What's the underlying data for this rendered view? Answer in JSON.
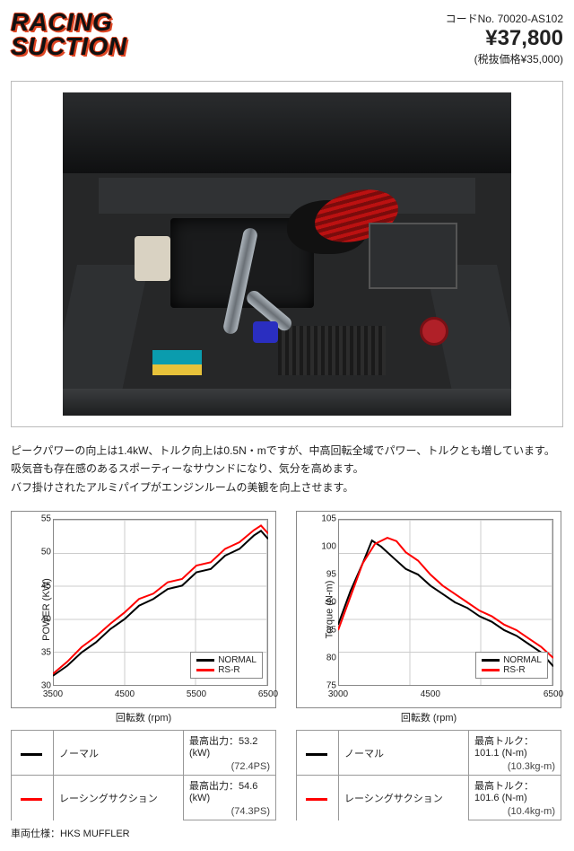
{
  "header": {
    "logo_line1": "RACING",
    "logo_line2": "SUCTION",
    "code_label": "コードNo. 70020-AS102",
    "price": "¥37,800",
    "price_sub": "(税抜価格¥35,000)"
  },
  "description": {
    "l1": "ピークパワーの向上は1.4kW、トルク向上は0.5N・mですが、中高回転全域でパワー、トルクとも増しています。",
    "l2": "吸気音も存在感のあるスポーティーなサウンドになり、気分を高めます。",
    "l3": "バフ掛けされたアルミパイプがエンジンルームの美観を向上させます。"
  },
  "charts": {
    "colors": {
      "normal": "#000000",
      "rsr": "#ff0000",
      "grid": "#cccccc",
      "axis": "#888888",
      "bg": "#ffffff"
    },
    "power": {
      "type": "line",
      "ylabel": "POWER  (KW)",
      "xlabel": "回転数 (rpm)",
      "xlim": [
        3500,
        6500
      ],
      "xticks": [
        3500,
        4500,
        5500,
        6500
      ],
      "ylim": [
        30,
        55
      ],
      "yticks": [
        30,
        35,
        40,
        45,
        50,
        55
      ],
      "line_width": 2,
      "series": {
        "normal": {
          "label": "NORMAL",
          "color": "#000000",
          "x": [
            3500,
            3700,
            3900,
            4100,
            4300,
            4500,
            4700,
            4900,
            5100,
            5300,
            5500,
            5700,
            5900,
            6100,
            6300,
            6400,
            6500
          ],
          "y": [
            31.5,
            33.0,
            35.0,
            36.5,
            38.5,
            40.0,
            42.0,
            43.0,
            44.5,
            45.0,
            47.0,
            47.5,
            49.5,
            50.5,
            52.5,
            53.2,
            52.0
          ]
        },
        "rsr": {
          "label": "RS-R",
          "color": "#ff0000",
          "x": [
            3500,
            3700,
            3900,
            4100,
            4300,
            4500,
            4700,
            4900,
            5100,
            5300,
            5500,
            5700,
            5900,
            6100,
            6300,
            6400,
            6500
          ],
          "y": [
            31.8,
            33.6,
            35.8,
            37.4,
            39.3,
            41.0,
            43.0,
            43.8,
            45.5,
            46.0,
            48.0,
            48.5,
            50.5,
            51.5,
            53.3,
            54.0,
            52.8
          ]
        }
      },
      "legend": [
        "NORMAL",
        "RS-R"
      ]
    },
    "torque": {
      "type": "line",
      "ylabel": "Torque  (N-m)",
      "xlabel": "回転数 (rpm)",
      "xlim": [
        3000,
        6500
      ],
      "xticks": [
        3000,
        4500,
        6500
      ],
      "ylim": [
        75,
        105
      ],
      "yticks": [
        75,
        80,
        85,
        90,
        95,
        100,
        105
      ],
      "line_width": 2,
      "series": {
        "normal": {
          "label": "NORMAL",
          "color": "#000000",
          "x": [
            3000,
            3200,
            3400,
            3550,
            3700,
            3900,
            4100,
            4300,
            4500,
            4700,
            4900,
            5100,
            5300,
            5500,
            5700,
            5900,
            6100,
            6300,
            6500
          ],
          "y": [
            86,
            92,
            97,
            101.1,
            100,
            98,
            96,
            95,
            93,
            91.5,
            90,
            89,
            87.5,
            86.5,
            85,
            84,
            82.5,
            81,
            78.5
          ]
        },
        "rsr": {
          "label": "RS-R",
          "color": "#ff0000",
          "x": [
            3000,
            3200,
            3400,
            3600,
            3800,
            3950,
            4100,
            4300,
            4500,
            4700,
            4900,
            5100,
            5300,
            5500,
            5700,
            5900,
            6100,
            6300,
            6500
          ],
          "y": [
            85,
            91,
            97,
            100.5,
            101.6,
            101.0,
            99,
            97.5,
            95,
            93,
            91.5,
            90,
            88.5,
            87.5,
            86,
            85,
            83.5,
            82,
            80
          ]
        }
      },
      "legend": [
        "NORMAL",
        "RS-R"
      ]
    }
  },
  "tables": {
    "power": {
      "rows": [
        {
          "swatch": "#000000",
          "name": "ノーマル",
          "metric": "最高出力",
          "val": "53.2 (kW)",
          "sub": "(72.4PS)"
        },
        {
          "swatch": "#ff0000",
          "name": "レーシングサクション",
          "metric": "最高出力",
          "val": "54.6 (kW)",
          "sub": "(74.3PS)"
        }
      ]
    },
    "torque": {
      "rows": [
        {
          "swatch": "#000000",
          "name": "ノーマル",
          "metric": "最高トルク",
          "val": "101.1 (N-m)",
          "sub": "(10.3kg-m)"
        },
        {
          "swatch": "#ff0000",
          "name": "レーシングサクション",
          "metric": "最高トルク",
          "val": "101.6 (N-m)",
          "sub": "(10.4kg-m)"
        }
      ]
    }
  },
  "footer": {
    "spec": "車両仕様：HKS MUFFLER"
  }
}
